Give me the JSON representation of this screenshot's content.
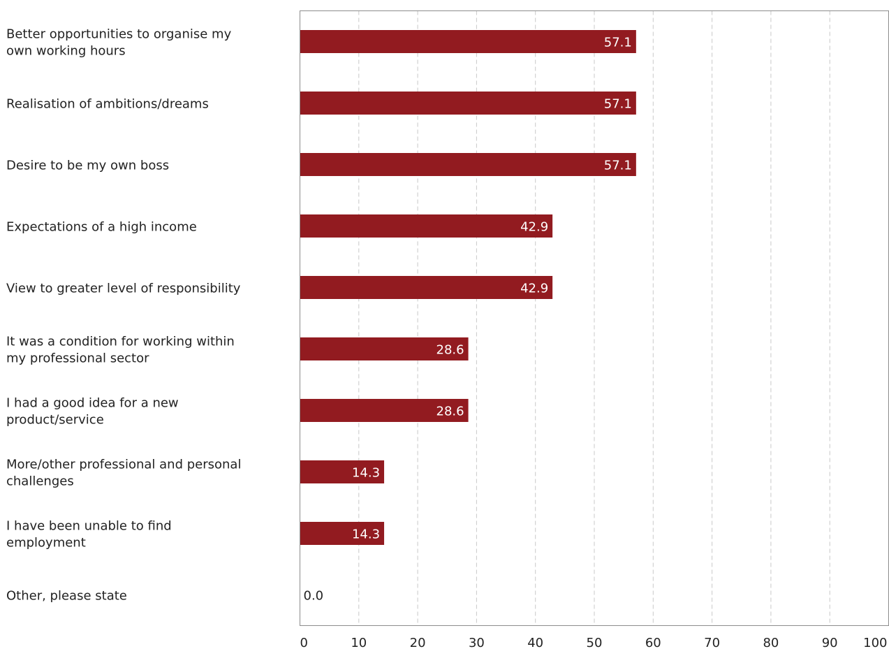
{
  "chart_data": {
    "type": "bar",
    "orientation": "horizontal",
    "categories": [
      [
        "Better opportunities to organise my",
        "own working hours"
      ],
      [
        "Realisation of ambitions/dreams"
      ],
      [
        "Desire to be my own boss"
      ],
      [
        "Expectations of a high income"
      ],
      [
        "View to greater level of responsibility"
      ],
      [
        "It was a condition for working within",
        "my professional sector"
      ],
      [
        "I had a good idea for a new",
        "product/service"
      ],
      [
        "More/other professional and personal",
        "challenges"
      ],
      [
        "I have been unable to find",
        "employment"
      ],
      [
        "Other, please state"
      ]
    ],
    "values": [
      57.1,
      57.1,
      57.1,
      42.9,
      42.9,
      28.6,
      28.6,
      14.3,
      14.3,
      0.0
    ],
    "value_labels": [
      "57.1",
      "57.1",
      "57.1",
      "42.9",
      "42.9",
      "28.6",
      "28.6",
      "14.3",
      "14.3",
      "0.0"
    ],
    "xlim": [
      0,
      100
    ],
    "x_ticks": [
      0,
      10,
      20,
      30,
      40,
      50,
      60,
      70,
      80,
      90,
      100
    ],
    "title": "",
    "xlabel": "",
    "ylabel": "",
    "grid": "vertical dashed",
    "legend": "none",
    "colors": {
      "bar": "#921B20",
      "value_label_inside": "#ffffff",
      "value_label_outside": "#222222",
      "text": "#222222",
      "grid": "#c8c8c8",
      "frame": "#8c8c8c"
    }
  }
}
